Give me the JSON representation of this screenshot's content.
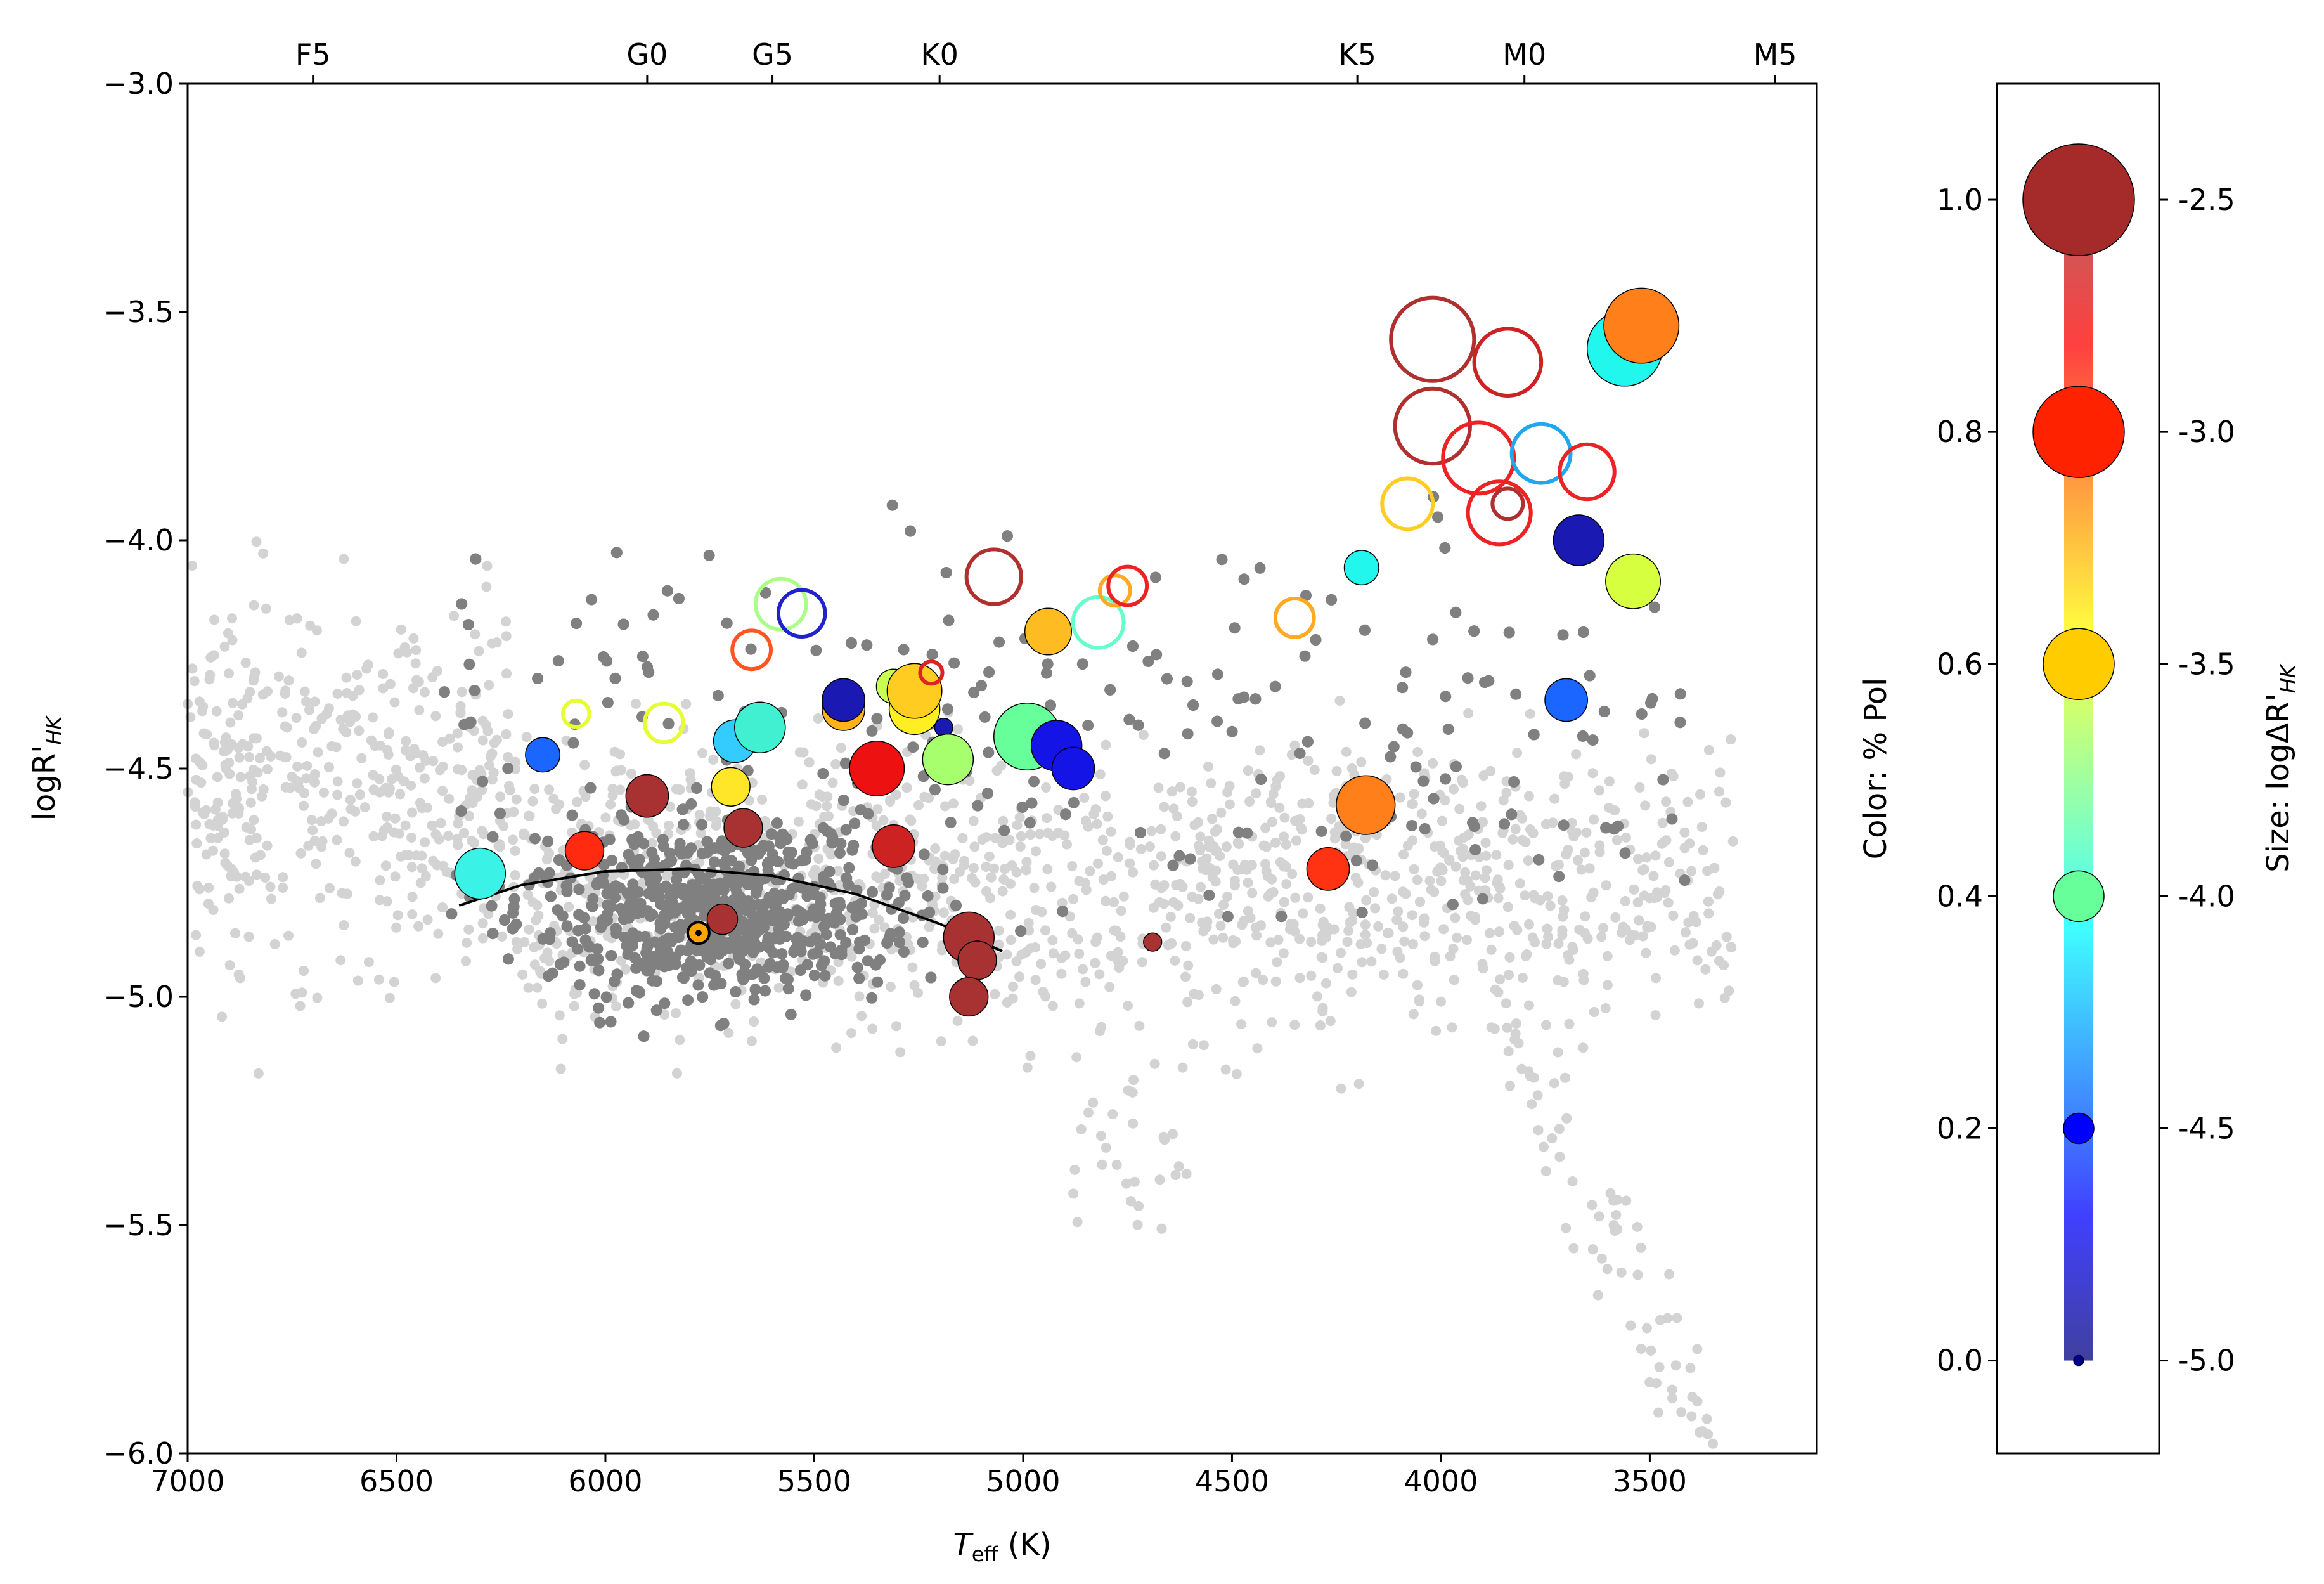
{
  "chart_data": {
    "type": "scatter",
    "xlabel_main": "T",
    "xlabel_sub": "eff",
    "xlabel_unit": " (K)",
    "ylabel_main": "logR'",
    "ylabel_sub": "HK",
    "xlim": [
      7000,
      3100
    ],
    "ylim": [
      -6.0,
      -3.0
    ],
    "x_ticks": [
      "7000",
      "6500",
      "6000",
      "5500",
      "5000",
      "4500",
      "4000",
      "3500"
    ],
    "x_tick_values": [
      7000,
      6500,
      6000,
      5500,
      5000,
      4500,
      4000,
      3500
    ],
    "y_ticks": [
      "−6.0",
      "−5.5",
      "−5.0",
      "−4.5",
      "−4.0",
      "−3.5",
      "−3.0"
    ],
    "y_tick_values": [
      -6.0,
      -5.5,
      -5.0,
      -4.5,
      -4.0,
      -3.5,
      -3.0
    ],
    "spectral_types": [
      {
        "label": "F5",
        "teff": 6700
      },
      {
        "label": "G0",
        "teff": 5900
      },
      {
        "label": "G5",
        "teff": 5600
      },
      {
        "label": "K0",
        "teff": 5200
      },
      {
        "label": "K5",
        "teff": 4200
      },
      {
        "label": "M0",
        "teff": 3800
      },
      {
        "label": "M5",
        "teff": 3200
      }
    ],
    "solar_cycle_curve": {
      "teff": [
        6350,
        6200,
        6000,
        5800,
        5600,
        5400,
        5200,
        5050
      ],
      "logrhk": [
        -4.8,
        -4.755,
        -4.725,
        -4.72,
        -4.735,
        -4.775,
        -4.84,
        -4.9
      ]
    },
    "sun": {
      "teff": 5777,
      "logrhk": -4.86,
      "color": "#FFA500"
    },
    "background_stars_color": "#d3d3d3",
    "sample_stars_color": "#808080",
    "colorbar": {
      "left_label": "Color: % Pol",
      "right_label_prefix": "Size: logΔR'",
      "right_label_sub": "HK",
      "pol_ticks": [
        "0.0",
        "0.2",
        "0.4",
        "0.6",
        "0.8",
        "1.0"
      ],
      "pol_tick_values": [
        0.0,
        0.2,
        0.4,
        0.6,
        0.8,
        1.0
      ],
      "size_ticks": [
        "-5.0",
        "-4.5",
        "-4.0",
        "-3.5",
        "-3.0",
        "-2.5"
      ],
      "range": [
        -0.08,
        1.1
      ],
      "gradient_stops": [
        "#00007f",
        "#0000ff",
        "#0080ff",
        "#00ffff",
        "#80ff80",
        "#ffff00",
        "#ff8000",
        "#ff0000",
        "#a52a2a"
      ],
      "legend_markers": [
        {
          "pol": 0.0,
          "size": -5.0,
          "color": "#00008b"
        },
        {
          "pol": 0.2,
          "size": -4.5,
          "color": "#0000ff"
        },
        {
          "pol": 0.4,
          "size": -4.0,
          "color": "#66ff99"
        },
        {
          "pol": 0.6,
          "size": -3.5,
          "color": "#ffcc00"
        },
        {
          "pol": 0.8,
          "size": -3.0,
          "color": "#ff2200"
        },
        {
          "pol": 1.0,
          "size": -2.5,
          "color": "#a52a2a"
        }
      ]
    },
    "filled_markers": [
      {
        "teff": 6300,
        "logrhk": -4.73,
        "size": -4.0,
        "color": "#3bf2e6"
      },
      {
        "teff": 6150,
        "logrhk": -4.47,
        "size": -4.4,
        "color": "#1a66ff"
      },
      {
        "teff": 6050,
        "logrhk": -4.68,
        "size": -4.3,
        "color": "#ff2a10"
      },
      {
        "teff": 5900,
        "logrhk": -4.56,
        "size": -4.2,
        "color": "#a83232"
      },
      {
        "teff": 5720,
        "logrhk": -4.83,
        "size": -4.5,
        "color": "#a83232"
      },
      {
        "teff": 5700,
        "logrhk": -4.54,
        "size": -4.3,
        "color": "#ffe629"
      },
      {
        "teff": 5690,
        "logrhk": -4.44,
        "size": -4.2,
        "color": "#33ccff"
      },
      {
        "teff": 5670,
        "logrhk": -4.63,
        "size": -4.3,
        "color": "#a83232"
      },
      {
        "teff": 5630,
        "logrhk": -4.41,
        "size": -4.0,
        "color": "#40f0d0"
      },
      {
        "teff": 5430,
        "logrhk": -4.37,
        "size": -4.2,
        "color": "#ffb319"
      },
      {
        "teff": 5430,
        "logrhk": -4.35,
        "size": -4.2,
        "color": "#1a1ab3"
      },
      {
        "teff": 5350,
        "logrhk": -4.5,
        "size": -3.9,
        "color": "#ee1111"
      },
      {
        "teff": 5310,
        "logrhk": -4.32,
        "size": -4.4,
        "color": "#c8ff52"
      },
      {
        "teff": 5310,
        "logrhk": -4.67,
        "size": -4.2,
        "color": "#cc2222"
      },
      {
        "teff": 5260,
        "logrhk": -4.37,
        "size": -4.0,
        "color": "#ffee22"
      },
      {
        "teff": 5260,
        "logrhk": -4.33,
        "size": -3.9,
        "color": "#ffcc22"
      },
      {
        "teff": 5190,
        "logrhk": -4.41,
        "size": -4.8,
        "color": "#1a1ab3"
      },
      {
        "teff": 5180,
        "logrhk": -4.48,
        "size": -4.0,
        "color": "#a8ff6e"
      },
      {
        "teff": 5130,
        "logrhk": -4.87,
        "size": -4.0,
        "color": "#a83232"
      },
      {
        "teff": 5110,
        "logrhk": -4.92,
        "size": -4.3,
        "color": "#a83232"
      },
      {
        "teff": 5130,
        "logrhk": -5.0,
        "size": -4.3,
        "color": "#a83232"
      },
      {
        "teff": 4990,
        "logrhk": -4.43,
        "size": -3.6,
        "color": "#66ff99"
      },
      {
        "teff": 4920,
        "logrhk": -4.45,
        "size": -4.0,
        "color": "#1414e6"
      },
      {
        "teff": 4880,
        "logrhk": -4.5,
        "size": -4.2,
        "color": "#1414e6"
      },
      {
        "teff": 4940,
        "logrhk": -4.2,
        "size": -4.1,
        "color": "#ffbb22"
      },
      {
        "teff": 4690,
        "logrhk": -4.88,
        "size": -4.8,
        "color": "#a83232"
      },
      {
        "teff": 4270,
        "logrhk": -4.72,
        "size": -4.2,
        "color": "#ff3311"
      },
      {
        "teff": 4180,
        "logrhk": -4.58,
        "size": -3.8,
        "color": "#ff7f1a"
      },
      {
        "teff": 4190,
        "logrhk": -4.06,
        "size": -4.4,
        "color": "#22f7ee"
      },
      {
        "teff": 3700,
        "logrhk": -4.35,
        "size": -4.2,
        "color": "#1a66ff"
      },
      {
        "teff": 3670,
        "logrhk": -4.0,
        "size": -4.0,
        "color": "#1a1ab3"
      },
      {
        "teff": 3540,
        "logrhk": -4.09,
        "size": -3.9,
        "color": "#d6ff3f"
      },
      {
        "teff": 3560,
        "logrhk": -3.58,
        "size": -3.4,
        "color": "#22f7ee"
      },
      {
        "teff": 3520,
        "logrhk": -3.53,
        "size": -3.4,
        "color": "#ff7f1a"
      }
    ],
    "open_markers": [
      {
        "teff": 6070,
        "logrhk": -4.38,
        "size": -4.6,
        "color": "#e6ff33"
      },
      {
        "teff": 5860,
        "logrhk": -4.4,
        "size": -4.3,
        "color": "#e6ff33"
      },
      {
        "teff": 5650,
        "logrhk": -4.24,
        "size": -4.3,
        "color": "#ff5522"
      },
      {
        "teff": 5580,
        "logrhk": -4.14,
        "size": -4.0,
        "color": "#aaff88"
      },
      {
        "teff": 5530,
        "logrhk": -4.16,
        "size": -4.1,
        "color": "#2222cc"
      },
      {
        "teff": 5220,
        "logrhk": -4.29,
        "size": -4.7,
        "color": "#dd2222"
      },
      {
        "teff": 5070,
        "logrhk": -4.08,
        "size": -3.9,
        "color": "#b03030"
      },
      {
        "teff": 4820,
        "logrhk": -4.18,
        "size": -4.0,
        "color": "#66ffcc"
      },
      {
        "teff": 4780,
        "logrhk": -4.11,
        "size": -4.5,
        "color": "#ffaa22"
      },
      {
        "teff": 4750,
        "logrhk": -4.1,
        "size": -4.3,
        "color": "#ee2222"
      },
      {
        "teff": 4350,
        "logrhk": -4.17,
        "size": -4.3,
        "color": "#ffaa22"
      },
      {
        "teff": 4080,
        "logrhk": -3.92,
        "size": -4.0,
        "color": "#ffcc22"
      },
      {
        "teff": 4020,
        "logrhk": -3.56,
        "size": -3.2,
        "color": "#b03030"
      },
      {
        "teff": 4020,
        "logrhk": -3.75,
        "size": -3.4,
        "color": "#b03030"
      },
      {
        "teff": 3910,
        "logrhk": -3.82,
        "size": -3.5,
        "color": "#ee2222"
      },
      {
        "teff": 3840,
        "logrhk": -3.61,
        "size": -3.6,
        "color": "#cc2222"
      },
      {
        "teff": 3860,
        "logrhk": -3.94,
        "size": -3.7,
        "color": "#ee2222"
      },
      {
        "teff": 3840,
        "logrhk": -3.92,
        "size": -4.5,
        "color": "#b03030"
      },
      {
        "teff": 3760,
        "logrhk": -3.81,
        "size": -3.8,
        "color": "#22a6ee"
      },
      {
        "teff": 3650,
        "logrhk": -3.85,
        "size": -3.9,
        "color": "#ee2222"
      }
    ]
  }
}
